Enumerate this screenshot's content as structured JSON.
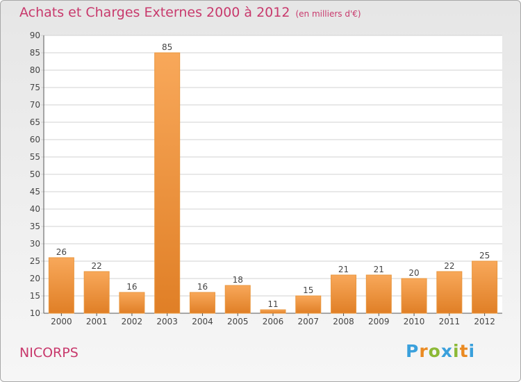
{
  "header": {
    "title": "Achats et Charges Externes 2000 à 2012",
    "subtitle": "(en milliers d'€)"
  },
  "footer": {
    "commune": "NICORPS",
    "logo": "Proxiti"
  },
  "colors": {
    "title": "#c8396c",
    "bar_light": "#f8a85a",
    "bar_dark": "#e07f26",
    "logo_letters": [
      "#3aa0dc",
      "#ea8a22",
      "#8cb936",
      "#3aa0dc",
      "#8cb936",
      "#ea8a22",
      "#3aa0dc"
    ]
  },
  "chart_data": {
    "type": "bar",
    "categories": [
      "2000",
      "2001",
      "2002",
      "2003",
      "2004",
      "2005",
      "2006",
      "2007",
      "2008",
      "2009",
      "2010",
      "2011",
      "2012"
    ],
    "values": [
      26,
      22,
      16,
      85,
      16,
      18,
      11,
      15,
      21,
      21,
      20,
      22,
      25
    ],
    "ylim": [
      10,
      90
    ],
    "yticks": [
      10,
      15,
      20,
      25,
      30,
      35,
      40,
      45,
      50,
      55,
      60,
      65,
      70,
      75,
      80,
      85,
      90
    ],
    "grid": true,
    "data_labels": true
  }
}
